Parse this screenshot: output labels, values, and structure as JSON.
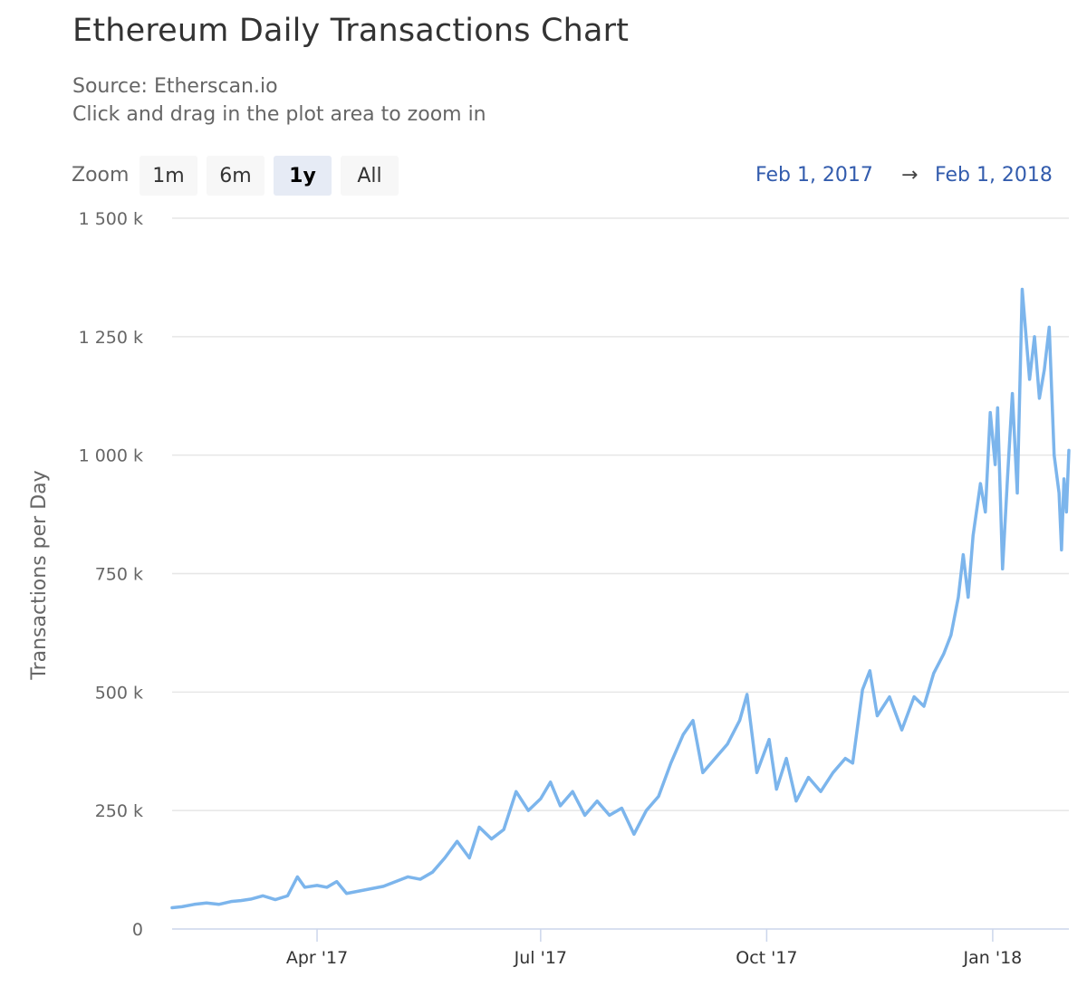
{
  "title": "Ethereum Daily Transactions Chart",
  "subtitle_source": "Source: Etherscan.io",
  "subtitle_hint": "Click and drag in the plot area to zoom in",
  "range_selector": {
    "zoom_label": "Zoom",
    "buttons": [
      {
        "label": "1m",
        "selected": false
      },
      {
        "label": "6m",
        "selected": false
      },
      {
        "label": "1y",
        "selected": true
      },
      {
        "label": "All",
        "selected": false
      }
    ],
    "from": "Feb 1, 2017",
    "arrow": "→",
    "to": "Feb 1, 2018"
  },
  "colors": {
    "series": "#7cb5ec",
    "grid": "#e6e6e6",
    "axis": "#ccd6eb",
    "range_text": "#335cad",
    "selected_button": "#e6ebf5"
  },
  "chart_data": {
    "type": "line",
    "title": "Ethereum Daily Transactions Chart",
    "ylabel": "Transactions per Day",
    "xlabel": "",
    "ylim": [
      0,
      1500000
    ],
    "xlim": [
      "2017-02-01",
      "2018-02-01"
    ],
    "yticks": [
      0,
      250000,
      500000,
      750000,
      1000000,
      1250000,
      1500000
    ],
    "ytick_labels": [
      "0",
      "250 k",
      "500 k",
      "750 k",
      "1 000 k",
      "1 250 k",
      "1 500 k"
    ],
    "xticks": [
      "2017-04-01",
      "2017-07-01",
      "2017-10-01",
      "2018-01-01"
    ],
    "xtick_labels": [
      "Apr '17",
      "Jul '17",
      "Oct '17",
      "Jan '18"
    ],
    "grid": true,
    "legend": "none",
    "series": [
      {
        "name": "",
        "points": [
          [
            "2017-02-01",
            45000
          ],
          [
            "2017-02-05",
            47000
          ],
          [
            "2017-02-10",
            52000
          ],
          [
            "2017-02-15",
            55000
          ],
          [
            "2017-02-20",
            52000
          ],
          [
            "2017-02-25",
            58000
          ],
          [
            "2017-03-01",
            60000
          ],
          [
            "2017-03-05",
            63000
          ],
          [
            "2017-03-10",
            70000
          ],
          [
            "2017-03-15",
            62000
          ],
          [
            "2017-03-20",
            70000
          ],
          [
            "2017-03-24",
            110000
          ],
          [
            "2017-03-27",
            88000
          ],
          [
            "2017-04-01",
            92000
          ],
          [
            "2017-04-05",
            88000
          ],
          [
            "2017-04-09",
            100000
          ],
          [
            "2017-04-13",
            75000
          ],
          [
            "2017-04-18",
            80000
          ],
          [
            "2017-04-23",
            85000
          ],
          [
            "2017-04-28",
            90000
          ],
          [
            "2017-05-03",
            100000
          ],
          [
            "2017-05-08",
            110000
          ],
          [
            "2017-05-13",
            105000
          ],
          [
            "2017-05-18",
            120000
          ],
          [
            "2017-05-23",
            150000
          ],
          [
            "2017-05-28",
            185000
          ],
          [
            "2017-06-02",
            150000
          ],
          [
            "2017-06-06",
            215000
          ],
          [
            "2017-06-11",
            190000
          ],
          [
            "2017-06-16",
            210000
          ],
          [
            "2017-06-21",
            290000
          ],
          [
            "2017-06-26",
            250000
          ],
          [
            "2017-07-01",
            275000
          ],
          [
            "2017-07-05",
            310000
          ],
          [
            "2017-07-09",
            260000
          ],
          [
            "2017-07-14",
            290000
          ],
          [
            "2017-07-19",
            240000
          ],
          [
            "2017-07-24",
            270000
          ],
          [
            "2017-07-29",
            240000
          ],
          [
            "2017-08-03",
            255000
          ],
          [
            "2017-08-08",
            200000
          ],
          [
            "2017-08-13",
            250000
          ],
          [
            "2017-08-18",
            280000
          ],
          [
            "2017-08-23",
            350000
          ],
          [
            "2017-08-28",
            410000
          ],
          [
            "2017-09-01",
            440000
          ],
          [
            "2017-09-05",
            330000
          ],
          [
            "2017-09-10",
            360000
          ],
          [
            "2017-09-15",
            390000
          ],
          [
            "2017-09-20",
            440000
          ],
          [
            "2017-09-23",
            495000
          ],
          [
            "2017-09-27",
            330000
          ],
          [
            "2017-10-02",
            400000
          ],
          [
            "2017-10-05",
            295000
          ],
          [
            "2017-10-09",
            360000
          ],
          [
            "2017-10-13",
            270000
          ],
          [
            "2017-10-18",
            320000
          ],
          [
            "2017-10-23",
            290000
          ],
          [
            "2017-10-28",
            330000
          ],
          [
            "2017-11-02",
            360000
          ],
          [
            "2017-11-05",
            350000
          ],
          [
            "2017-11-09",
            505000
          ],
          [
            "2017-11-12",
            545000
          ],
          [
            "2017-11-15",
            450000
          ],
          [
            "2017-11-20",
            490000
          ],
          [
            "2017-11-25",
            420000
          ],
          [
            "2017-11-30",
            490000
          ],
          [
            "2017-12-04",
            470000
          ],
          [
            "2017-12-08",
            540000
          ],
          [
            "2017-12-12",
            580000
          ],
          [
            "2017-12-15",
            620000
          ],
          [
            "2017-12-18",
            700000
          ],
          [
            "2017-12-20",
            790000
          ],
          [
            "2017-12-22",
            700000
          ],
          [
            "2017-12-24",
            830000
          ],
          [
            "2017-12-27",
            940000
          ],
          [
            "2017-12-29",
            880000
          ],
          [
            "2017-12-31",
            1090000
          ],
          [
            "2018-01-02",
            980000
          ],
          [
            "2018-01-03",
            1100000
          ],
          [
            "2018-01-05",
            760000
          ],
          [
            "2018-01-07",
            950000
          ],
          [
            "2018-01-09",
            1130000
          ],
          [
            "2018-01-11",
            920000
          ],
          [
            "2018-01-13",
            1350000
          ],
          [
            "2018-01-16",
            1160000
          ],
          [
            "2018-01-18",
            1250000
          ],
          [
            "2018-01-20",
            1120000
          ],
          [
            "2018-01-22",
            1180000
          ],
          [
            "2018-01-24",
            1270000
          ],
          [
            "2018-01-26",
            1000000
          ],
          [
            "2018-01-28",
            920000
          ],
          [
            "2018-01-29",
            800000
          ],
          [
            "2018-01-30",
            950000
          ],
          [
            "2018-01-31",
            880000
          ],
          [
            "2018-02-01",
            1010000
          ]
        ]
      }
    ]
  }
}
